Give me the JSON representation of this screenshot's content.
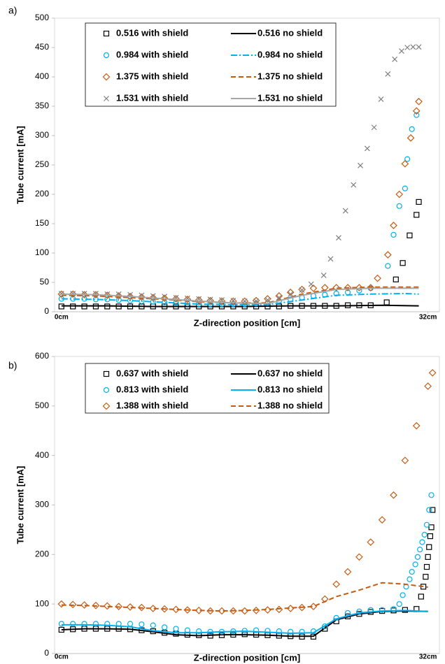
{
  "chart_data": [
    {
      "type": "scatter",
      "label": "a)",
      "xlabel": "Z-direction position [cm]",
      "ylabel": "Tube current [mA]",
      "xlim": [
        -0.6,
        33
      ],
      "xticks": [
        {
          "value": 0,
          "label": "0cm"
        },
        {
          "value": 32,
          "label": "32cm"
        }
      ],
      "ylim": [
        0,
        500
      ],
      "yticks": [
        0,
        50,
        100,
        150,
        200,
        250,
        300,
        350,
        400,
        450,
        500
      ],
      "series": [
        {
          "name": "0.516 with shield",
          "color": "#000000",
          "marker": "square",
          "x": [
            0,
            1,
            2,
            3,
            4,
            5,
            6,
            7,
            8,
            9,
            10,
            11,
            12,
            13,
            14,
            15,
            16,
            17,
            18,
            19,
            20,
            21,
            22,
            23,
            24,
            25,
            26,
            27,
            28.4,
            29.2,
            29.8,
            30.4,
            31,
            31.2
          ],
          "values": [
            9,
            9,
            9,
            9,
            9,
            9,
            9,
            9,
            9,
            9,
            9,
            9,
            9,
            9,
            9,
            9,
            9,
            9,
            9,
            9,
            10,
            10,
            10,
            10,
            10,
            11,
            11,
            11,
            16,
            55,
            83,
            130,
            165,
            187
          ]
        },
        {
          "name": "0.516 no shield",
          "color": "#000000",
          "dash": "solid",
          "x": [
            0,
            4,
            8,
            12,
            16,
            20,
            24,
            28,
            31.2
          ],
          "values": [
            10,
            10,
            9,
            9,
            9,
            10,
            10,
            11,
            10
          ]
        },
        {
          "name": "0.984 with shield",
          "color": "#00b0f0",
          "marker": "circle",
          "x": [
            0,
            1,
            2,
            3,
            4,
            5,
            6,
            7,
            8,
            9,
            10,
            11,
            12,
            13,
            14,
            15,
            16,
            17,
            18,
            19,
            20,
            21,
            22,
            23,
            24,
            25,
            26,
            27,
            28.5,
            29,
            29.5,
            30,
            30.2,
            30.6,
            31
          ],
          "values": [
            22,
            22,
            22,
            21,
            21,
            20,
            19,
            18,
            17,
            16,
            15,
            14,
            13,
            13,
            13,
            13,
            13,
            14,
            15,
            18,
            21,
            24,
            27,
            29,
            31,
            33,
            36,
            40,
            78,
            131,
            180,
            210,
            260,
            311,
            335
          ]
        },
        {
          "name": "0.984 no shield",
          "color": "#00b0f0",
          "dash": "dashdot",
          "x": [
            0,
            3,
            6,
            9,
            12,
            15,
            18,
            21,
            24,
            27,
            30,
            31.2
          ],
          "values": [
            22,
            21,
            19,
            16,
            13,
            12,
            12,
            20,
            28,
            30,
            31,
            30
          ]
        },
        {
          "name": "1.375 with shield",
          "color": "#c55a11",
          "marker": "diamond",
          "x": [
            0,
            1,
            2,
            3,
            4,
            5,
            6,
            7,
            8,
            9,
            10,
            11,
            12,
            13,
            14,
            15,
            16,
            17,
            18,
            19,
            20,
            21,
            22,
            23,
            24,
            25,
            26,
            27,
            27.6,
            28.5,
            29,
            29.5,
            30,
            30.5,
            31,
            31.2
          ],
          "values": [
            30,
            30,
            29,
            29,
            28,
            27,
            26,
            25,
            24,
            23,
            22,
            21,
            20,
            19,
            18,
            18,
            18,
            19,
            22,
            27,
            33,
            38,
            40,
            41,
            41,
            41,
            41,
            41,
            57,
            97,
            147,
            200,
            252,
            296,
            342,
            358
          ]
        },
        {
          "name": "1.375 no shield",
          "color": "#c55a11",
          "dash": "dashed",
          "x": [
            0,
            3,
            6,
            9,
            12,
            15,
            18,
            21,
            24,
            27,
            30,
            31.2
          ],
          "values": [
            28,
            27,
            24,
            21,
            17,
            15,
            15,
            30,
            40,
            42,
            42,
            42
          ]
        },
        {
          "name": "1.531 with shield",
          "color": "#7f7f7f",
          "marker": "x",
          "x": [
            0,
            1,
            2,
            3,
            4,
            5,
            6,
            7,
            8,
            9,
            10,
            11,
            12,
            13,
            14,
            15,
            16,
            17,
            18,
            19,
            20,
            21,
            21.8,
            22.9,
            23.5,
            24.2,
            24.8,
            25.5,
            26.1,
            26.7,
            27.3,
            27.9,
            28.5,
            29.1,
            29.7,
            30.2,
            30.7,
            31.2
          ],
          "values": [
            31,
            31,
            31,
            31,
            30,
            30,
            29,
            28,
            27,
            26,
            24,
            23,
            22,
            21,
            20,
            19,
            18,
            18,
            20,
            24,
            30,
            37,
            47,
            62,
            90,
            126,
            172,
            216,
            249,
            278,
            314,
            362,
            405,
            430,
            444,
            450,
            451,
            451
          ]
        },
        {
          "name": "1.531 no shield",
          "color": "#a6a6a6",
          "dash": "solid",
          "x": [
            0,
            3,
            6,
            9,
            12,
            15,
            18,
            21,
            24,
            27,
            30,
            31.2
          ],
          "values": [
            30,
            29,
            26,
            22,
            18,
            15,
            14,
            28,
            38,
            40,
            40,
            40
          ]
        }
      ]
    },
    {
      "type": "scatter",
      "label": "b)",
      "xlabel": "Z-direction position [cm]",
      "ylabel": "Tube current [mA]",
      "xlim": [
        -0.6,
        33
      ],
      "xticks": [
        {
          "value": 0,
          "label": "0cm"
        },
        {
          "value": 32,
          "label": "32cm"
        }
      ],
      "ylim": [
        0,
        600
      ],
      "yticks": [
        0,
        100,
        200,
        300,
        400,
        500,
        600
      ],
      "series": [
        {
          "name": "0.637 with shield",
          "color": "#000000",
          "marker": "square",
          "x": [
            0,
            1,
            2,
            3,
            4,
            5,
            6,
            7,
            8,
            9,
            10,
            11,
            12,
            13,
            14,
            15,
            16,
            17,
            18,
            19,
            20,
            21,
            22,
            23,
            24,
            25,
            26,
            27,
            28,
            29,
            30,
            31,
            31.4,
            31.6,
            31.8,
            31.9,
            32,
            32.1,
            32.2,
            32.3,
            32.4
          ],
          "values": [
            48,
            49,
            50,
            50,
            50,
            50,
            49,
            47,
            45,
            42,
            40,
            38,
            37,
            36,
            37,
            38,
            39,
            38,
            37,
            36,
            35,
            34,
            34,
            50,
            65,
            75,
            80,
            84,
            86,
            87,
            88,
            90,
            115,
            135,
            155,
            175,
            195,
            215,
            237,
            255,
            290
          ]
        },
        {
          "name": "0.637 no shield",
          "color": "#000000",
          "dash": "solid",
          "x": [
            0,
            2,
            4,
            6,
            8,
            10,
            12,
            14,
            16,
            18,
            20,
            22,
            24,
            26,
            28,
            30,
            32
          ],
          "values": [
            48,
            50,
            50,
            49,
            44,
            38,
            36,
            38,
            38,
            37,
            35,
            35,
            68,
            80,
            85,
            86,
            85
          ]
        },
        {
          "name": "0.813 with shield",
          "color": "#00b0f0",
          "marker": "circle",
          "x": [
            0,
            1,
            2,
            3,
            4,
            5,
            6,
            7,
            8,
            9,
            10,
            11,
            12,
            13,
            14,
            15,
            16,
            17,
            18,
            19,
            20,
            21,
            22,
            23,
            24,
            25,
            26,
            27,
            28,
            29,
            29.5,
            29.8,
            30.1,
            30.4,
            30.6,
            30.9,
            31.1,
            31.3,
            31.5,
            31.7,
            31.9,
            32.1,
            32.3
          ],
          "values": [
            60,
            60,
            60,
            60,
            60,
            60,
            60,
            59,
            57,
            53,
            50,
            47,
            45,
            44,
            44,
            45,
            46,
            47,
            46,
            45,
            44,
            44,
            45,
            55,
            72,
            82,
            85,
            88,
            88,
            90,
            100,
            118,
            135,
            150,
            165,
            180,
            195,
            210,
            225,
            240,
            260,
            290,
            320
          ]
        },
        {
          "name": "0.813 no shield",
          "color": "#00b0f0",
          "dash": "solid",
          "x": [
            0,
            2,
            4,
            6,
            8,
            10,
            12,
            14,
            16,
            18,
            20,
            22,
            24,
            26,
            28,
            30,
            32
          ],
          "values": [
            58,
            58,
            57,
            54,
            46,
            42,
            42,
            44,
            45,
            43,
            41,
            42,
            70,
            82,
            86,
            87,
            85
          ]
        },
        {
          "name": "1.388 with shield",
          "color": "#c55a11",
          "marker": "diamond",
          "x": [
            0,
            1,
            2,
            3,
            4,
            5,
            6,
            7,
            8,
            9,
            10,
            11,
            12,
            13,
            14,
            15,
            16,
            17,
            18,
            19,
            20,
            21,
            22,
            23,
            24,
            25,
            26,
            27,
            28,
            29,
            30,
            31,
            32,
            32.4
          ],
          "values": [
            100,
            99,
            98,
            97,
            96,
            95,
            94,
            93,
            91,
            90,
            89,
            88,
            87,
            86,
            86,
            86,
            86,
            87,
            88,
            89,
            91,
            93,
            95,
            110,
            140,
            165,
            195,
            225,
            270,
            320,
            390,
            460,
            540,
            567
          ]
        },
        {
          "name": "1.388 no shield",
          "color": "#c55a11",
          "dash": "dashed",
          "x": [
            0,
            2,
            4,
            6,
            8,
            10,
            12,
            14,
            16,
            18,
            20,
            22,
            24,
            26,
            28,
            30,
            32
          ],
          "values": [
            98,
            97,
            95,
            93,
            91,
            89,
            87,
            86,
            87,
            89,
            92,
            95,
            115,
            128,
            143,
            140,
            134
          ]
        }
      ]
    }
  ]
}
